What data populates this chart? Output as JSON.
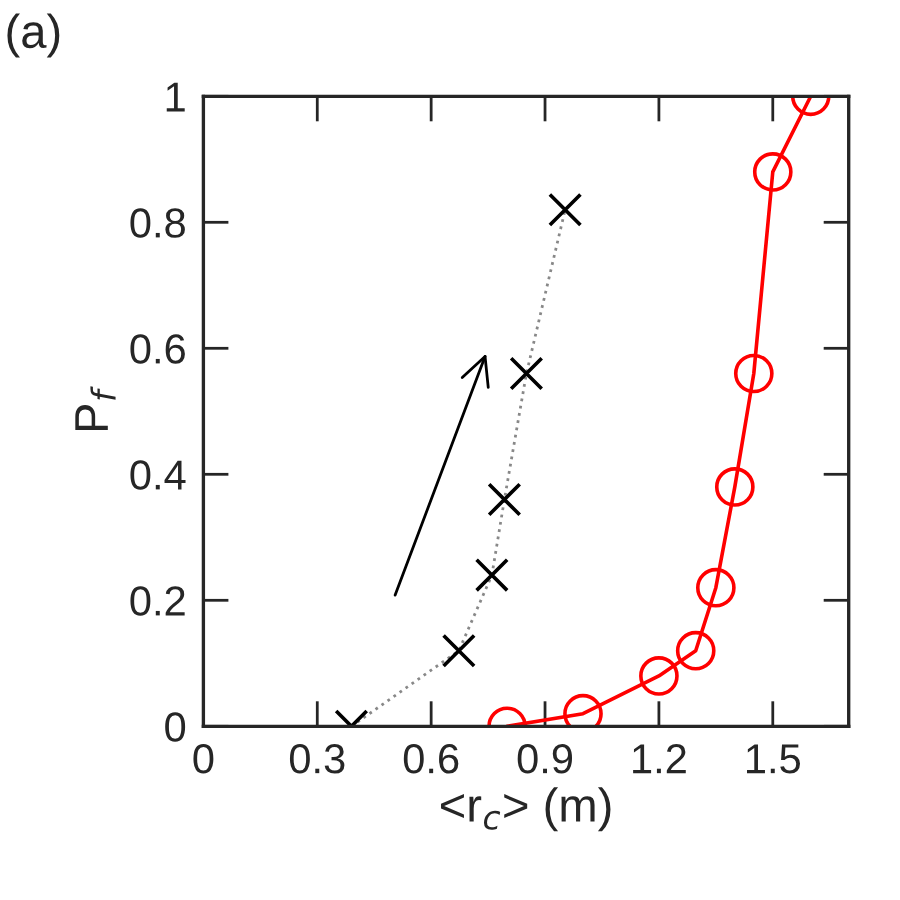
{
  "chart_data": {
    "type": "line",
    "xlabel": "<r$_{c}$> (m)",
    "ylabel": "P$_{f}$",
    "annotations": [
      "(a)"
    ],
    "series": [
      {
        "color": "#000000",
        "marker": "cross",
        "line_style": "dotted",
        "x": [
          0.39,
          0.673,
          0.76,
          0.793,
          0.851,
          0.953
        ],
        "values": [
          0,
          0.12,
          0.24,
          0.36,
          0.56,
          0.82
        ]
      },
      {
        "color": "#ff0000",
        "marker": "circle",
        "line_style": "solid",
        "x": [
          0.8,
          1.0,
          1.2,
          1.297,
          1.35,
          1.4,
          1.45,
          1.5,
          1.6
        ],
        "values": [
          0,
          0.02,
          0.08,
          0.12,
          0.22,
          0.38,
          0.56,
          0.88,
          1.0
        ]
      }
    ],
    "xlim": [
      0,
      1.7
    ],
    "ylim": [
      0,
      1
    ],
    "xticks": [
      0,
      0.3,
      0.6,
      0.9,
      1.2,
      1.5
    ],
    "yticks": [
      0,
      0.2,
      0.4,
      0.6,
      0.8,
      1
    ],
    "grid": false,
    "legend": false
  }
}
